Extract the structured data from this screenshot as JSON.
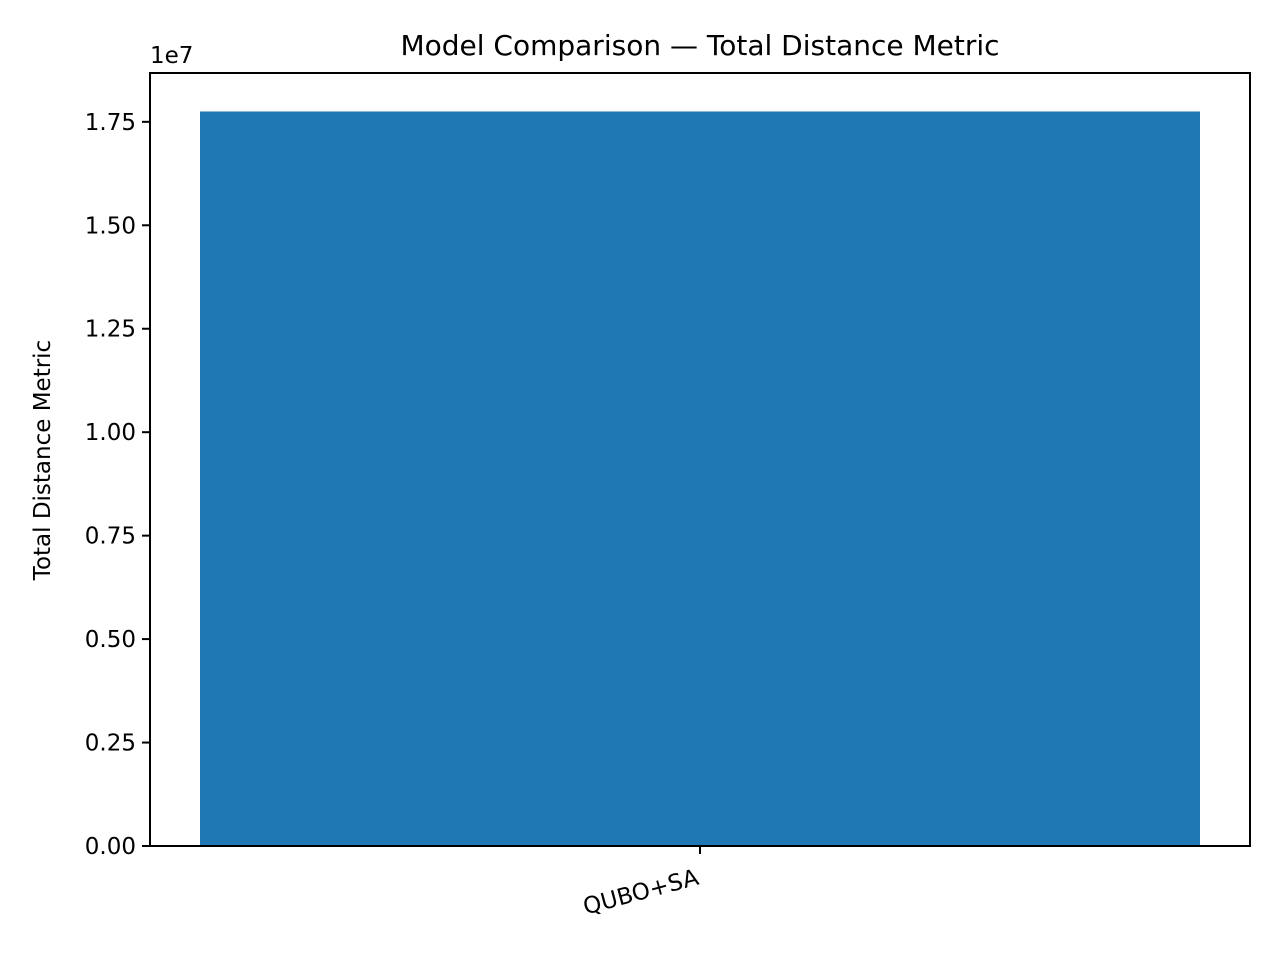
{
  "chart_data": {
    "type": "bar",
    "title": "Model Comparison — Total Distance Metric",
    "xlabel": "",
    "ylabel": "Total Distance Metric",
    "categories": [
      "QUBO+SA"
    ],
    "values": [
      17750000
    ],
    "ylim": [
      0,
      18680000
    ],
    "yticks": [
      0,
      2500000,
      5000000,
      7500000,
      10000000,
      12500000,
      15000000,
      17500000
    ],
    "ytick_labels": [
      "0.00",
      "0.25",
      "0.50",
      "0.75",
      "1.00",
      "1.25",
      "1.50",
      "1.75"
    ],
    "y_offset_label": "1e7",
    "xtick_rotation": -15,
    "bar_color": "#1f77b4",
    "grid": false,
    "legend": false
  }
}
